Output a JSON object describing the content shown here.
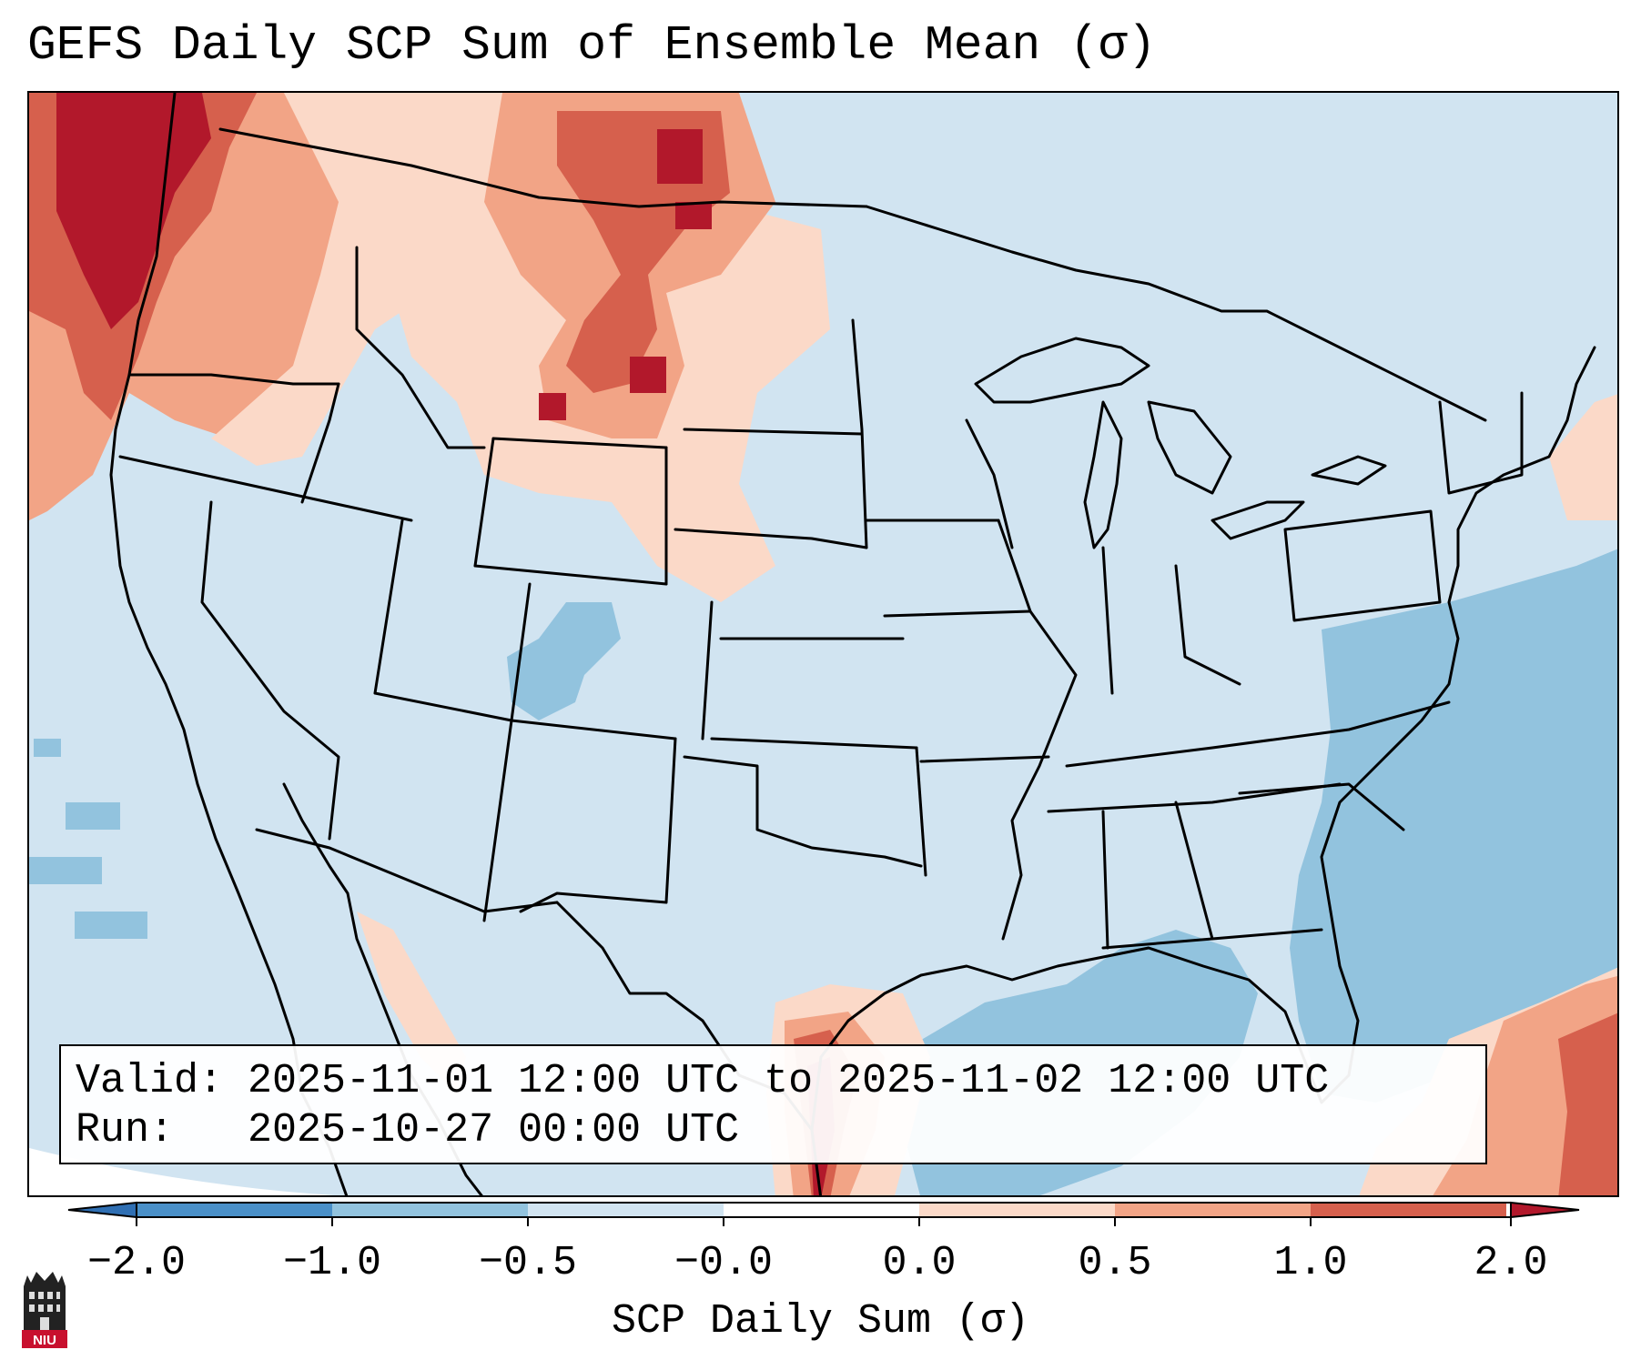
{
  "title": "GEFS Daily SCP Sum of Ensemble Mean (σ)",
  "info": {
    "valid_label": "Valid:",
    "valid_value": "2025-11-01 12:00 UTC to 2025-11-02 12:00 UTC",
    "run_label": "Run:",
    "run_value": "2025-10-27 00:00 UTC"
  },
  "colorbar": {
    "label": "SCP Daily Sum (σ)",
    "ticks": [
      "−2.0",
      "−1.0",
      "−0.5",
      "−0.0",
      "0.0",
      "0.5",
      "1.0",
      "2.0"
    ],
    "colors": {
      "lt_-2": "#2f6fb3",
      "-2_-1": "#4a90c8",
      "-1_-0.5": "#92c3de",
      "-0.5_0": "#d1e4f1",
      "0_0.5": "#fbd9c8",
      "0.5_1": "#f2a486",
      "1_2": "#d6604d",
      "gt_2": "#b2182b"
    }
  },
  "map": {
    "background_category": "-0.5_0",
    "features": [
      "us-state-borders",
      "coastlines",
      "great-lakes",
      "gulf-of-mexico",
      "atlantic-ocean",
      "pacific-ocean"
    ]
  },
  "logo": {
    "text": "NIU"
  }
}
